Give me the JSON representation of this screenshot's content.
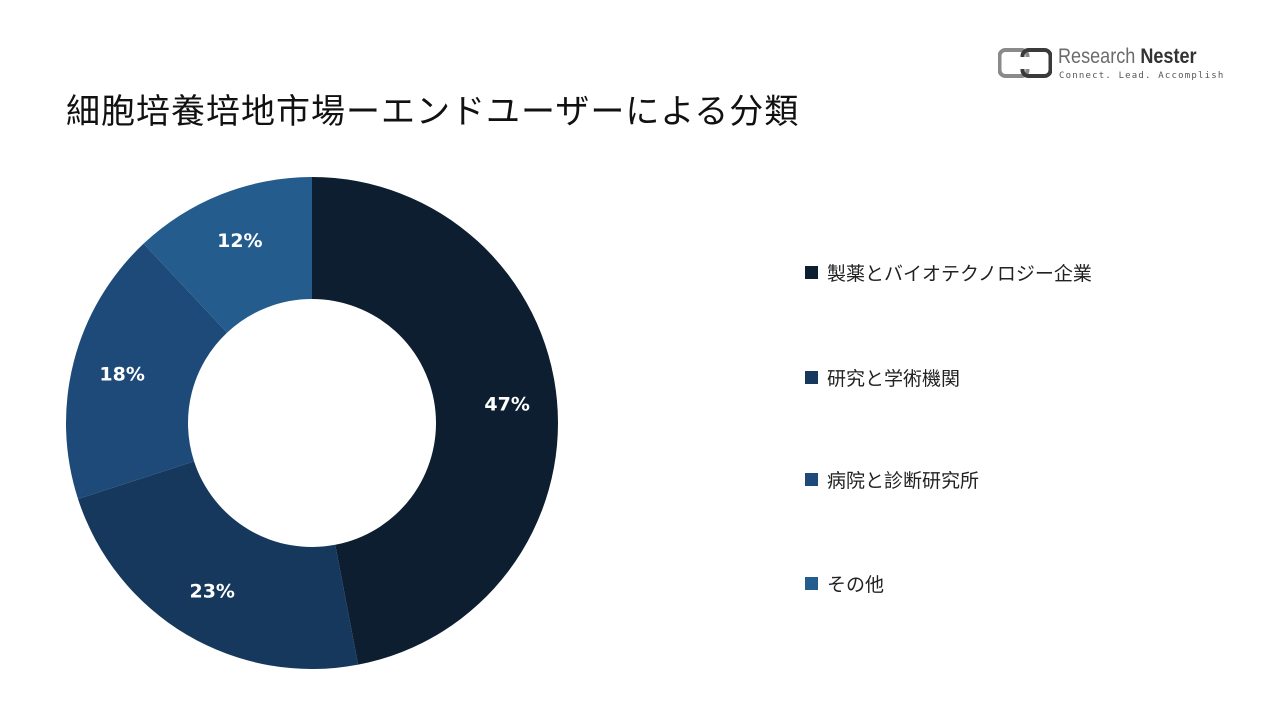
{
  "title": "細胞培養培地市場ーエンドユーザーによる分類",
  "logo": {
    "name_light": "Research ",
    "name_bold": "Nester",
    "tagline": "Connect. Lead. Accomplish"
  },
  "chart_data": {
    "type": "pie",
    "variant": "donut",
    "start_angle_deg": 0,
    "direction": "clockwise",
    "legend_position": "right",
    "slices": [
      {
        "label": "製薬とバイオテクノロジー企業",
        "value": 47,
        "display": "47%",
        "color": "#0d1e30"
      },
      {
        "label": "研究と学術機関",
        "value": 23,
        "display": "23%",
        "color": "#16385c"
      },
      {
        "label": "病院と診断研究所",
        "value": 18,
        "display": "18%",
        "color": "#1d4a78"
      },
      {
        "label": "その他",
        "value": 12,
        "display": "12%",
        "color": "#255c8e"
      }
    ]
  }
}
